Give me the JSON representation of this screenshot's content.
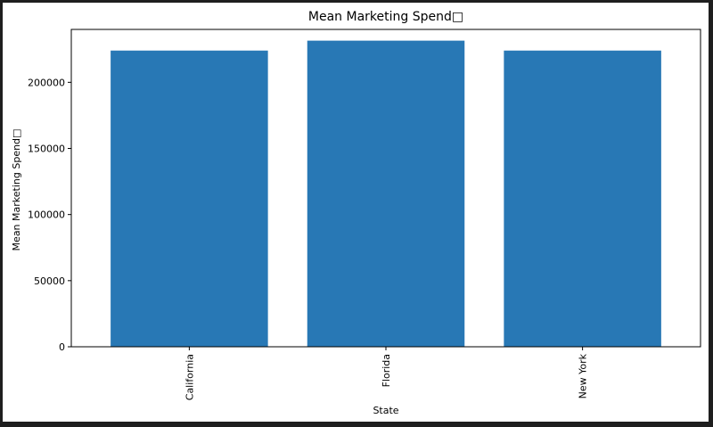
{
  "chart_data": {
    "type": "bar",
    "title": "Mean Marketing Spend□",
    "xlabel": "State",
    "ylabel": "Mean Marketing Spend□",
    "categories": [
      "California",
      "Florida",
      "New York"
    ],
    "values": [
      224000,
      231500,
      224000
    ],
    "ylim": [
      0,
      240000
    ],
    "yticks": [
      0,
      50000,
      100000,
      150000,
      200000
    ],
    "ytick_labels": [
      "0",
      "50000",
      "100000",
      "150000",
      "200000"
    ],
    "bar_color": "#2878b5",
    "grid": false,
    "legend": false
  }
}
